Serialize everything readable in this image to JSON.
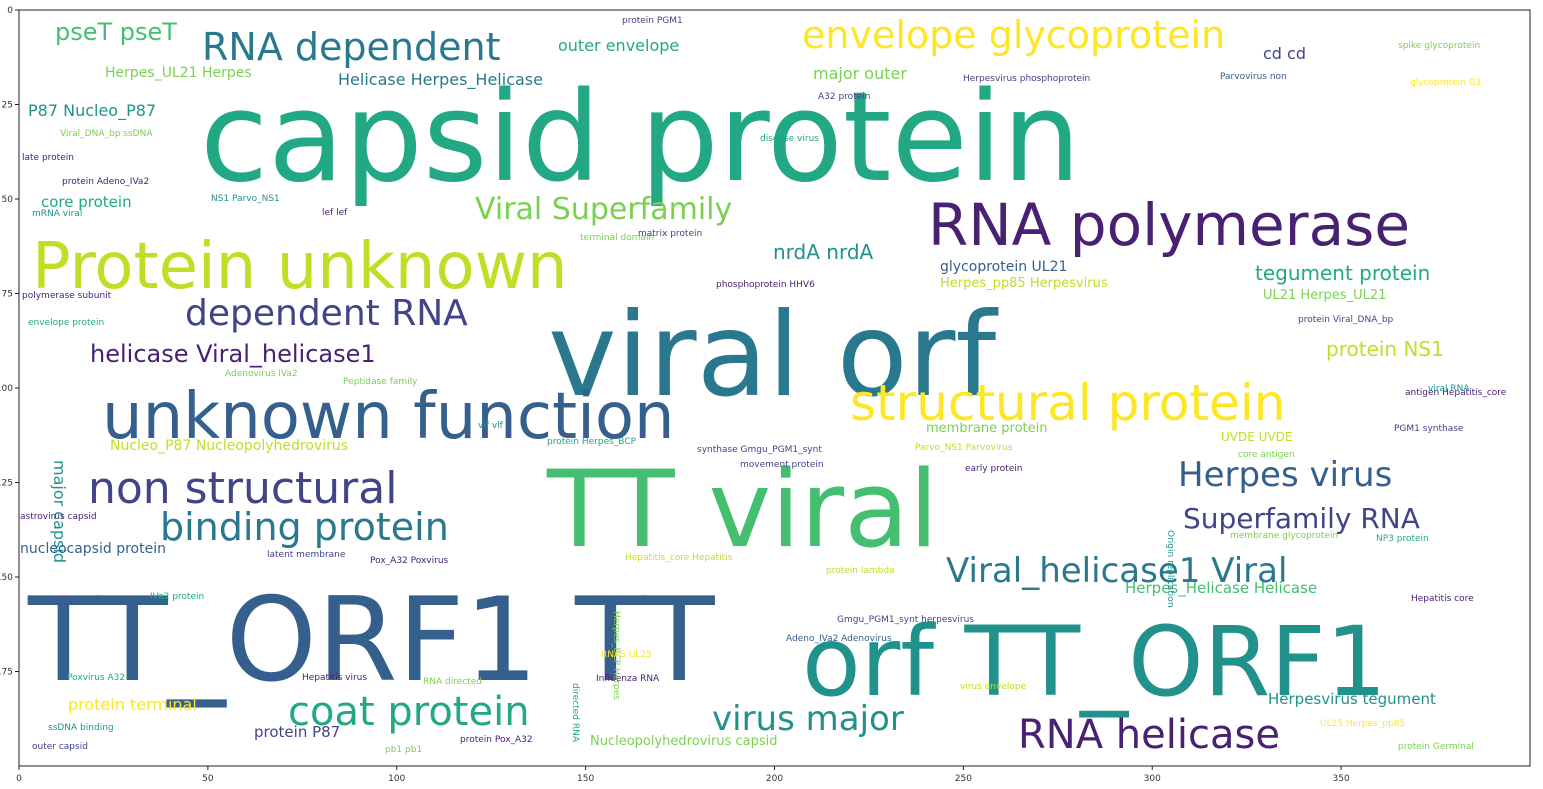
{
  "x_ticks": [
    "0",
    "50",
    "100",
    "150",
    "200",
    "250",
    "300",
    "350"
  ],
  "y_ticks": [
    "0",
    "25",
    "50",
    "75",
    "100",
    "125",
    "150",
    "175"
  ],
  "colors": {
    "dark_purple": "#482173",
    "indigo": "#414487",
    "blue": "#355f8d",
    "steel": "#2a788e",
    "teal": "#21918c",
    "green_teal": "#22a884",
    "green": "#44bf70",
    "lime_green": "#7ad151",
    "yellow_green": "#bddf26",
    "yellow": "#fde725"
  },
  "words": [
    {
      "text": "capsid protein",
      "color": "#22a884"
    },
    {
      "text": "viral orf",
      "color": "#2a788e"
    },
    {
      "text": "TT viral",
      "color": "#44bf70"
    },
    {
      "text": "TT_ORF1 TT",
      "color": "#355f8d"
    },
    {
      "text": "orf TT_ORF1",
      "color": "#21918c"
    },
    {
      "text": "unknown function",
      "color": "#355f8d"
    },
    {
      "text": "Protein unknown",
      "color": "#bddf26"
    },
    {
      "text": "RNA polymerase",
      "color": "#482173"
    },
    {
      "text": "structural protein",
      "color": "#fde725"
    },
    {
      "text": "RNA dependent",
      "color": "#2a788e"
    },
    {
      "text": "envelope glycoprotein",
      "color": "#fde725"
    },
    {
      "text": "non structural",
      "color": "#414487"
    },
    {
      "text": "binding protein",
      "color": "#2a788e"
    },
    {
      "text": "dependent RNA",
      "color": "#414487"
    },
    {
      "text": "coat protein",
      "color": "#22a884"
    },
    {
      "text": "virus major",
      "color": "#21918c"
    },
    {
      "text": "RNA helicase",
      "color": "#482173"
    },
    {
      "text": "Herpes virus",
      "color": "#355f8d"
    },
    {
      "text": "Superfamily RNA",
      "color": "#414487"
    },
    {
      "text": "Viral_helicase1 Viral",
      "color": "#2a788e"
    },
    {
      "text": "Viral Superfamily",
      "color": "#7ad151"
    },
    {
      "text": "helicase Viral_helicase1",
      "color": "#482173"
    },
    {
      "text": "pseT pseT",
      "color": "#44bf70"
    },
    {
      "text": "tegument protein",
      "color": "#22a884"
    },
    {
      "text": "protein NS1",
      "color": "#bddf26"
    },
    {
      "text": "nrdA nrdA",
      "color": "#21918c"
    },
    {
      "text": "outer envelope",
      "color": "#22a884"
    },
    {
      "text": "major outer",
      "color": "#7ad151"
    },
    {
      "text": "Helicase Herpes_Helicase",
      "color": "#2a788e"
    },
    {
      "text": "Herpes_UL21 Herpes",
      "color": "#7ad151"
    },
    {
      "text": "P87 Nucleo_P87",
      "color": "#21918c"
    },
    {
      "text": "cd cd",
      "color": "#414487"
    },
    {
      "text": "core protein",
      "color": "#22a884"
    },
    {
      "text": "glycoprotein UL21",
      "color": "#355f8d"
    },
    {
      "text": "Herpes_pp85 Herpesvirus",
      "color": "#bddf26"
    },
    {
      "text": "UL21 Herpes_UL21",
      "color": "#7ad151"
    },
    {
      "text": "Nucleo_P87 Nucleopolyhedrovirus",
      "color": "#bddf26"
    },
    {
      "text": "major capsid",
      "color": "#21918c"
    },
    {
      "text": "nucleocapsid protein",
      "color": "#355f8d"
    },
    {
      "text": "membrane protein",
      "color": "#7ad151"
    },
    {
      "text": "UVDE UVDE",
      "color": "#bddf26"
    },
    {
      "text": "Herpes_Helicase Helicase",
      "color": "#44bf70"
    },
    {
      "text": "Herpesvirus tegument",
      "color": "#21918c"
    },
    {
      "text": "protein terminal",
      "color": "#fde725"
    },
    {
      "text": "protein P87",
      "color": "#414487"
    },
    {
      "text": "Nucleopolyhedrovirus capsid",
      "color": "#7ad151"
    },
    {
      "text": "protein PGM1",
      "color": "#414487"
    },
    {
      "text": "spike glycoprotein",
      "color": "#7ad151"
    },
    {
      "text": "glycoprotein G1",
      "color": "#fde725"
    },
    {
      "text": "Herpesvirus phosphoprotein",
      "color": "#414487"
    },
    {
      "text": "Parvovirus non",
      "color": "#355f8d"
    },
    {
      "text": "A32 protein",
      "color": "#414487"
    },
    {
      "text": "Viral_DNA_bp ssDNA",
      "color": "#7ad151"
    },
    {
      "text": "late protein",
      "color": "#482173"
    },
    {
      "text": "protein Adeno_IVa2",
      "color": "#482173"
    },
    {
      "text": "disease virus",
      "color": "#22a884"
    },
    {
      "text": "NS1 Parvo_NS1",
      "color": "#21918c"
    },
    {
      "text": "mRNA viral",
      "color": "#21918c"
    },
    {
      "text": "lef lef",
      "color": "#482173"
    },
    {
      "text": "terminal domain",
      "color": "#7ad151"
    },
    {
      "text": "matrix protein",
      "color": "#414487"
    },
    {
      "text": "polymerase subunit",
      "color": "#482173"
    },
    {
      "text": "phosphoprotein HHV6",
      "color": "#482173"
    },
    {
      "text": "envelope protein",
      "color": "#22a884"
    },
    {
      "text": "protein Viral_DNA_bp",
      "color": "#414487"
    },
    {
      "text": "Adenovirus IVa2",
      "color": "#7ad151"
    },
    {
      "text": "Peptidase family",
      "color": "#7ad151"
    },
    {
      "text": "antigen Hepatitis_core",
      "color": "#482173"
    },
    {
      "text": "viral RNA",
      "color": "#21918c"
    },
    {
      "text": "astrovirus capsid",
      "color": "#482173"
    },
    {
      "text": "vlf vlf",
      "color": "#21918c"
    },
    {
      "text": "protein Herpes_BCP",
      "color": "#22a884"
    },
    {
      "text": "synthase Gmgu_PGM1_synt",
      "color": "#414487"
    },
    {
      "text": "Parvo_NS1 Parvovirus",
      "color": "#bddf26"
    },
    {
      "text": "movement protein",
      "color": "#414487"
    },
    {
      "text": "early protein",
      "color": "#482173"
    },
    {
      "text": "PGM1 synthase",
      "color": "#414487"
    },
    {
      "text": "core antigen",
      "color": "#7ad151"
    },
    {
      "text": "latent membrane",
      "color": "#414487"
    },
    {
      "text": "Pox_A32 Poxvirus",
      "color": "#482173"
    },
    {
      "text": "Hepatitis_core Hepatitis",
      "color": "#bddf26"
    },
    {
      "text": "membrane glycoprotein",
      "color": "#7ad151"
    },
    {
      "text": "NP3 protein",
      "color": "#22a884"
    },
    {
      "text": "protein lambda",
      "color": "#bddf26"
    },
    {
      "text": "IVa2 protein",
      "color": "#22a884"
    },
    {
      "text": "Gmgu_PGM1_synt herpesvirus",
      "color": "#414487"
    },
    {
      "text": "Hepatitis core",
      "color": "#482173"
    },
    {
      "text": "Adeno_IVa2 Adenovirus",
      "color": "#355f8d"
    },
    {
      "text": "Poxvirus A32",
      "color": "#22a884"
    },
    {
      "text": "Hepatitis virus",
      "color": "#482173"
    },
    {
      "text": "RNA directed",
      "color": "#7ad151"
    },
    {
      "text": "Influenza RNA",
      "color": "#482173"
    },
    {
      "text": "virus envelope",
      "color": "#bddf26"
    },
    {
      "text": "ssDNA binding",
      "color": "#21918c"
    },
    {
      "text": "outer capsid",
      "color": "#414487"
    },
    {
      "text": "pb1 pb1",
      "color": "#7ad151"
    },
    {
      "text": "protein Pox_A32",
      "color": "#482173"
    },
    {
      "text": "UL25 Herpes_pp85",
      "color": "#fde725"
    },
    {
      "text": "protein Germinal",
      "color": "#7ad151"
    },
    {
      "text": "Origin replication",
      "color": "#21918c"
    },
    {
      "text": "directed RNA",
      "color": "#22a884"
    },
    {
      "text": "Herpes_BCP Herpes",
      "color": "#7ad151"
    },
    {
      "text": "RNAS UL25",
      "color": "#fde725"
    }
  ]
}
